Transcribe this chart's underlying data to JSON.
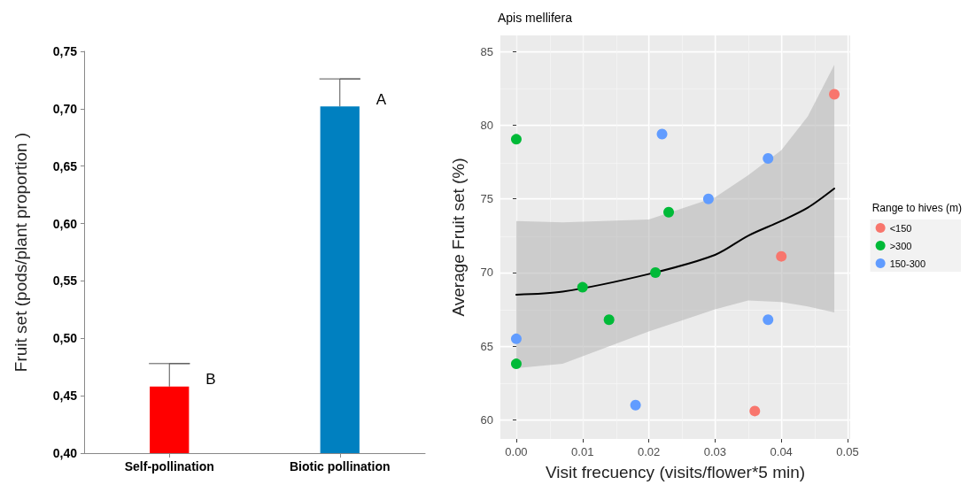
{
  "chart_data": [
    {
      "type": "bar",
      "ylabel": "Fruit set (pods/plant proportion )",
      "categories": [
        "Self-pollination",
        "Biotic pollination"
      ],
      "values": [
        0.458,
        0.702
      ],
      "colors": [
        "#ff0000",
        "#0080c0"
      ],
      "errors": [
        [
          0.458,
          0.478
        ],
        [
          0.702,
          0.726
        ]
      ],
      "ylim": [
        0.4,
        0.75
      ],
      "yticks": [
        {
          "value": 0.4,
          "label": "0,40"
        },
        {
          "value": 0.45,
          "label": "0,45"
        },
        {
          "value": 0.5,
          "label": "0,50"
        },
        {
          "value": 0.55,
          "label": "0,55"
        },
        {
          "value": 0.6,
          "label": "0,60"
        },
        {
          "value": 0.65,
          "label": "0,65"
        },
        {
          "value": 0.7,
          "label": "0,70"
        },
        {
          "value": 0.75,
          "label": "0,75"
        }
      ],
      "annotations": [
        {
          "text": "B",
          "x": "Self-pollination",
          "y": 0.458
        },
        {
          "text": "A",
          "x": "Biotic pollination",
          "y": 0.702
        }
      ],
      "grid": false,
      "legend": false
    },
    {
      "type": "scatter",
      "title": "Apis mellifera",
      "xlabel": "Visit frecuency (visits/flower*5 min)",
      "ylabel": "Average Fruit set (%)",
      "legend_title": "Range to hives (m)",
      "legend": "right",
      "grid": true,
      "marker": "circle",
      "xlim": [
        -0.0024,
        0.0504
      ],
      "ylim": [
        58.7,
        86.1
      ],
      "xticks": [
        {
          "value": 0,
          "label": "0.00"
        },
        {
          "value": 0.01,
          "label": "0.01"
        },
        {
          "value": 0.02,
          "label": "0.02"
        },
        {
          "value": 0.03,
          "label": "0.03"
        },
        {
          "value": 0.04,
          "label": "0.04"
        },
        {
          "value": 0.05,
          "label": "0.05"
        }
      ],
      "yticks": [
        60,
        65,
        70,
        75,
        80,
        85
      ],
      "series": [
        {
          "name": "<150",
          "color": "#f8766d",
          "x": [
            0.048,
            0.04,
            0.036
          ],
          "values": [
            82.1,
            71.1,
            60.6
          ]
        },
        {
          "name": ">300",
          "color": "#00ba38",
          "x": [
            0,
            0.023,
            0.01,
            0.021,
            0.014,
            0
          ],
          "values": [
            79.05,
            74.1,
            69.0,
            70.0,
            66.8,
            63.8
          ]
        },
        {
          "name": "150-300",
          "color": "#619cff",
          "x": [
            0.022,
            0.038,
            0.029,
            0,
            0.038,
            0.018
          ],
          "values": [
            79.4,
            77.75,
            75.0,
            65.5,
            66.8,
            61.0
          ]
        },
        {
          "type": "line",
          "color": "#000000",
          "marker": "none",
          "line_style": "solid",
          "x": [
            0,
            0.007,
            0.02,
            0.03,
            0.035,
            0.04,
            0.044,
            0.048
          ],
          "values": [
            68.5,
            68.7,
            69.9,
            71.2,
            72.5,
            73.5,
            74.4,
            75.7
          ],
          "lower": [
            63.5,
            63.8,
            66.0,
            67.5,
            68.1,
            68.0,
            67.7,
            67.3
          ],
          "upper": [
            73.5,
            73.4,
            73.6,
            75.1,
            76.6,
            78.3,
            80.6,
            84.1
          ]
        }
      ]
    }
  ]
}
